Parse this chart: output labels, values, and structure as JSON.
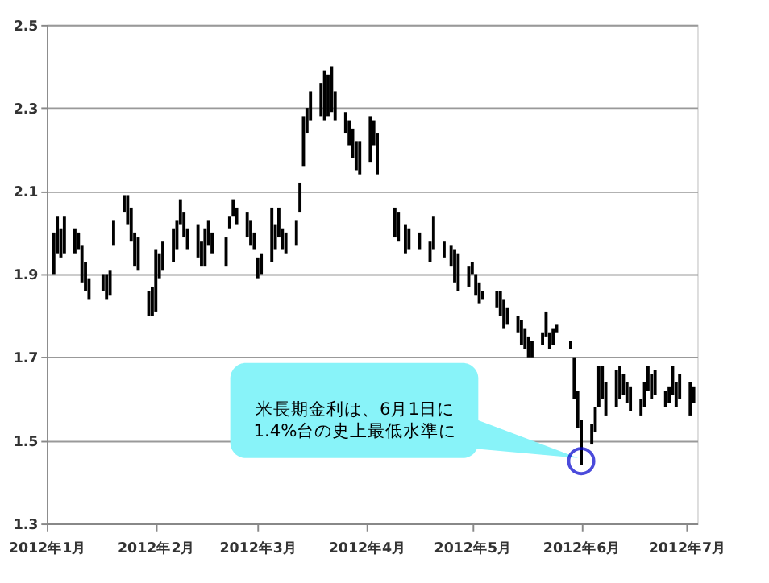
{
  "chart_data": {
    "type": "bar",
    "x": [
      "2012-01-03",
      "2012-01-04",
      "2012-01-05",
      "2012-01-06",
      "2012-01-09",
      "2012-01-10",
      "2012-01-11",
      "2012-01-12",
      "2012-01-13",
      "2012-01-17",
      "2012-01-18",
      "2012-01-19",
      "2012-01-20",
      "2012-01-23",
      "2012-01-24",
      "2012-01-25",
      "2012-01-26",
      "2012-01-27",
      "2012-01-30",
      "2012-01-31",
      "2012-02-01",
      "2012-02-02",
      "2012-02-03",
      "2012-02-06",
      "2012-02-07",
      "2012-02-08",
      "2012-02-09",
      "2012-02-10",
      "2012-02-13",
      "2012-02-14",
      "2012-02-15",
      "2012-02-16",
      "2012-02-17",
      "2012-02-21",
      "2012-02-22",
      "2012-02-23",
      "2012-02-24",
      "2012-02-27",
      "2012-02-28",
      "2012-02-29",
      "2012-03-01",
      "2012-03-02",
      "2012-03-05",
      "2012-03-06",
      "2012-03-07",
      "2012-03-08",
      "2012-03-09",
      "2012-03-12",
      "2012-03-13",
      "2012-03-14",
      "2012-03-15",
      "2012-03-16",
      "2012-03-19",
      "2012-03-20",
      "2012-03-21",
      "2012-03-22",
      "2012-03-23",
      "2012-03-26",
      "2012-03-27",
      "2012-03-28",
      "2012-03-29",
      "2012-03-30",
      "2012-04-02",
      "2012-04-03",
      "2012-04-04",
      "2012-04-09",
      "2012-04-10",
      "2012-04-12",
      "2012-04-13",
      "2012-04-16",
      "2012-04-19",
      "2012-04-20",
      "2012-04-23",
      "2012-04-25",
      "2012-04-26",
      "2012-04-27",
      "2012-04-30",
      "2012-05-01",
      "2012-05-02",
      "2012-05-03",
      "2012-05-04",
      "2012-05-08",
      "2012-05-09",
      "2012-05-10",
      "2012-05-11",
      "2012-05-14",
      "2012-05-15",
      "2012-05-16",
      "2012-05-17",
      "2012-05-18",
      "2012-05-21",
      "2012-05-22",
      "2012-05-23",
      "2012-05-24",
      "2012-05-25",
      "2012-05-29",
      "2012-05-30",
      "2012-05-31",
      "2012-06-01",
      "2012-06-04",
      "2012-06-05",
      "2012-06-06",
      "2012-06-07",
      "2012-06-08",
      "2012-06-11",
      "2012-06-12",
      "2012-06-13",
      "2012-06-14",
      "2012-06-15",
      "2012-06-18",
      "2012-06-19",
      "2012-06-20",
      "2012-06-21",
      "2012-06-22",
      "2012-06-25",
      "2012-06-26",
      "2012-06-27",
      "2012-06-28",
      "2012-06-29",
      "2012-07-02",
      "2012-07-03"
    ],
    "base": [
      1.9,
      1.95,
      1.94,
      1.95,
      1.95,
      1.96,
      1.88,
      1.86,
      1.84,
      1.86,
      1.84,
      1.85,
      1.97,
      2.05,
      2.02,
      1.98,
      1.92,
      1.91,
      1.8,
      1.8,
      1.81,
      1.89,
      1.91,
      1.93,
      1.96,
      2.02,
      1.99,
      1.96,
      1.94,
      1.92,
      1.92,
      1.97,
      1.95,
      1.92,
      2.01,
      2.04,
      2.02,
      1.99,
      1.97,
      1.96,
      1.89,
      1.9,
      1.93,
      1.96,
      1.99,
      1.96,
      1.95,
      1.97,
      2.05,
      2.16,
      2.24,
      2.27,
      2.28,
      2.27,
      2.28,
      2.29,
      2.27,
      2.24,
      2.21,
      2.18,
      2.15,
      2.14,
      2.17,
      2.21,
      2.14,
      1.99,
      1.98,
      1.95,
      1.96,
      1.96,
      1.93,
      1.96,
      1.94,
      1.92,
      1.88,
      1.86,
      1.87,
      1.9,
      1.85,
      1.83,
      1.84,
      1.82,
      1.8,
      1.77,
      1.78,
      1.76,
      1.73,
      1.72,
      1.7,
      1.7,
      1.73,
      1.75,
      1.72,
      1.73,
      1.76,
      1.72,
      1.6,
      1.53,
      1.44,
      1.49,
      1.52,
      1.58,
      1.6,
      1.56,
      1.58,
      1.6,
      1.61,
      1.59,
      1.57,
      1.56,
      1.58,
      1.62,
      1.6,
      1.61,
      1.58,
      1.59,
      1.61,
      1.58,
      1.6,
      1.56,
      1.59
    ],
    "values": [
      0.1,
      0.09,
      0.07,
      0.09,
      0.06,
      0.04,
      0.09,
      0.07,
      0.05,
      0.04,
      0.06,
      0.06,
      0.06,
      0.04,
      0.07,
      0.08,
      0.08,
      0.08,
      0.06,
      0.07,
      0.15,
      0.06,
      0.07,
      0.08,
      0.07,
      0.06,
      0.06,
      0.05,
      0.08,
      0.06,
      0.09,
      0.06,
      0.05,
      0.07,
      0.03,
      0.04,
      0.04,
      0.06,
      0.06,
      0.04,
      0.05,
      0.05,
      0.13,
      0.06,
      0.07,
      0.05,
      0.05,
      0.06,
      0.07,
      0.12,
      0.06,
      0.07,
      0.08,
      0.12,
      0.1,
      0.11,
      0.07,
      0.05,
      0.06,
      0.07,
      0.07,
      0.08,
      0.11,
      0.06,
      0.1,
      0.07,
      0.07,
      0.07,
      0.05,
      0.04,
      0.05,
      0.08,
      0.04,
      0.05,
      0.08,
      0.09,
      0.05,
      0.03,
      0.05,
      0.05,
      0.02,
      0.04,
      0.06,
      0.07,
      0.04,
      0.04,
      0.06,
      0.05,
      0.05,
      0.04,
      0.03,
      0.06,
      0.04,
      0.04,
      0.02,
      0.02,
      0.1,
      0.09,
      0.11,
      0.05,
      0.06,
      0.1,
      0.08,
      0.08,
      0.09,
      0.08,
      0.05,
      0.05,
      0.06,
      0.04,
      0.06,
      0.06,
      0.06,
      0.06,
      0.04,
      0.04,
      0.07,
      0.06,
      0.06,
      0.08,
      0.04
    ],
    "color": "#000000",
    "xlim": [
      "2012-01-01",
      "2012-07-04"
    ],
    "xticks": [
      {
        "value": "2012-01-01",
        "label": "2012年1月"
      },
      {
        "value": "2012-02-01",
        "label": "2012年2月"
      },
      {
        "value": "2012-03-01",
        "label": "2012年3月"
      },
      {
        "value": "2012-04-01",
        "label": "2012年4月"
      },
      {
        "value": "2012-05-01",
        "label": "2012年5月"
      },
      {
        "value": "2012-06-01",
        "label": "2012年6月"
      },
      {
        "value": "2012-07-01",
        "label": "2012年7月"
      }
    ],
    "ylim": [
      1.3,
      2.5
    ],
    "yticks": [
      1.3,
      1.5,
      1.7,
      1.9,
      2.1,
      2.3,
      2.5
    ],
    "grid": "y",
    "annotations": [
      {
        "text": "米長期金利は、6月1日に\n1.4%台の史上最低水準に",
        "x": "2012-06-01",
        "y": 1.45
      }
    ]
  }
}
